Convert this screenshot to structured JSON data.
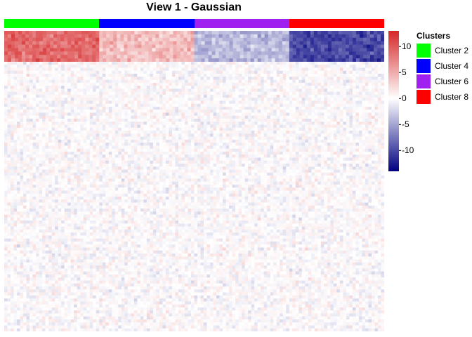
{
  "chart_data": {
    "type": "heatmap",
    "title": "View 1 - Gaussian",
    "clusters": [
      {
        "name": "Cluster 2",
        "color": "#00ff00",
        "mean_value": 9
      },
      {
        "name": "Cluster 4",
        "color": "#0000ff",
        "mean_value": 4
      },
      {
        "name": "Cluster 6",
        "color": "#a020f0",
        "mean_value": -4
      },
      {
        "name": "Cluster 8",
        "color": "#ff0000",
        "mean_value": -10
      }
    ],
    "legend_title": "Clusters",
    "colorbar": {
      "min": -14,
      "max": 13,
      "ticks": [
        10,
        5,
        0,
        -5,
        -10
      ],
      "tick_labels": [
        "10",
        "5",
        "0",
        "-5",
        "-10"
      ],
      "low_color": "#000080",
      "mid_color": "#ffffff",
      "high_color": "#d62728"
    },
    "background_noise_range": [
      -3,
      3
    ]
  }
}
